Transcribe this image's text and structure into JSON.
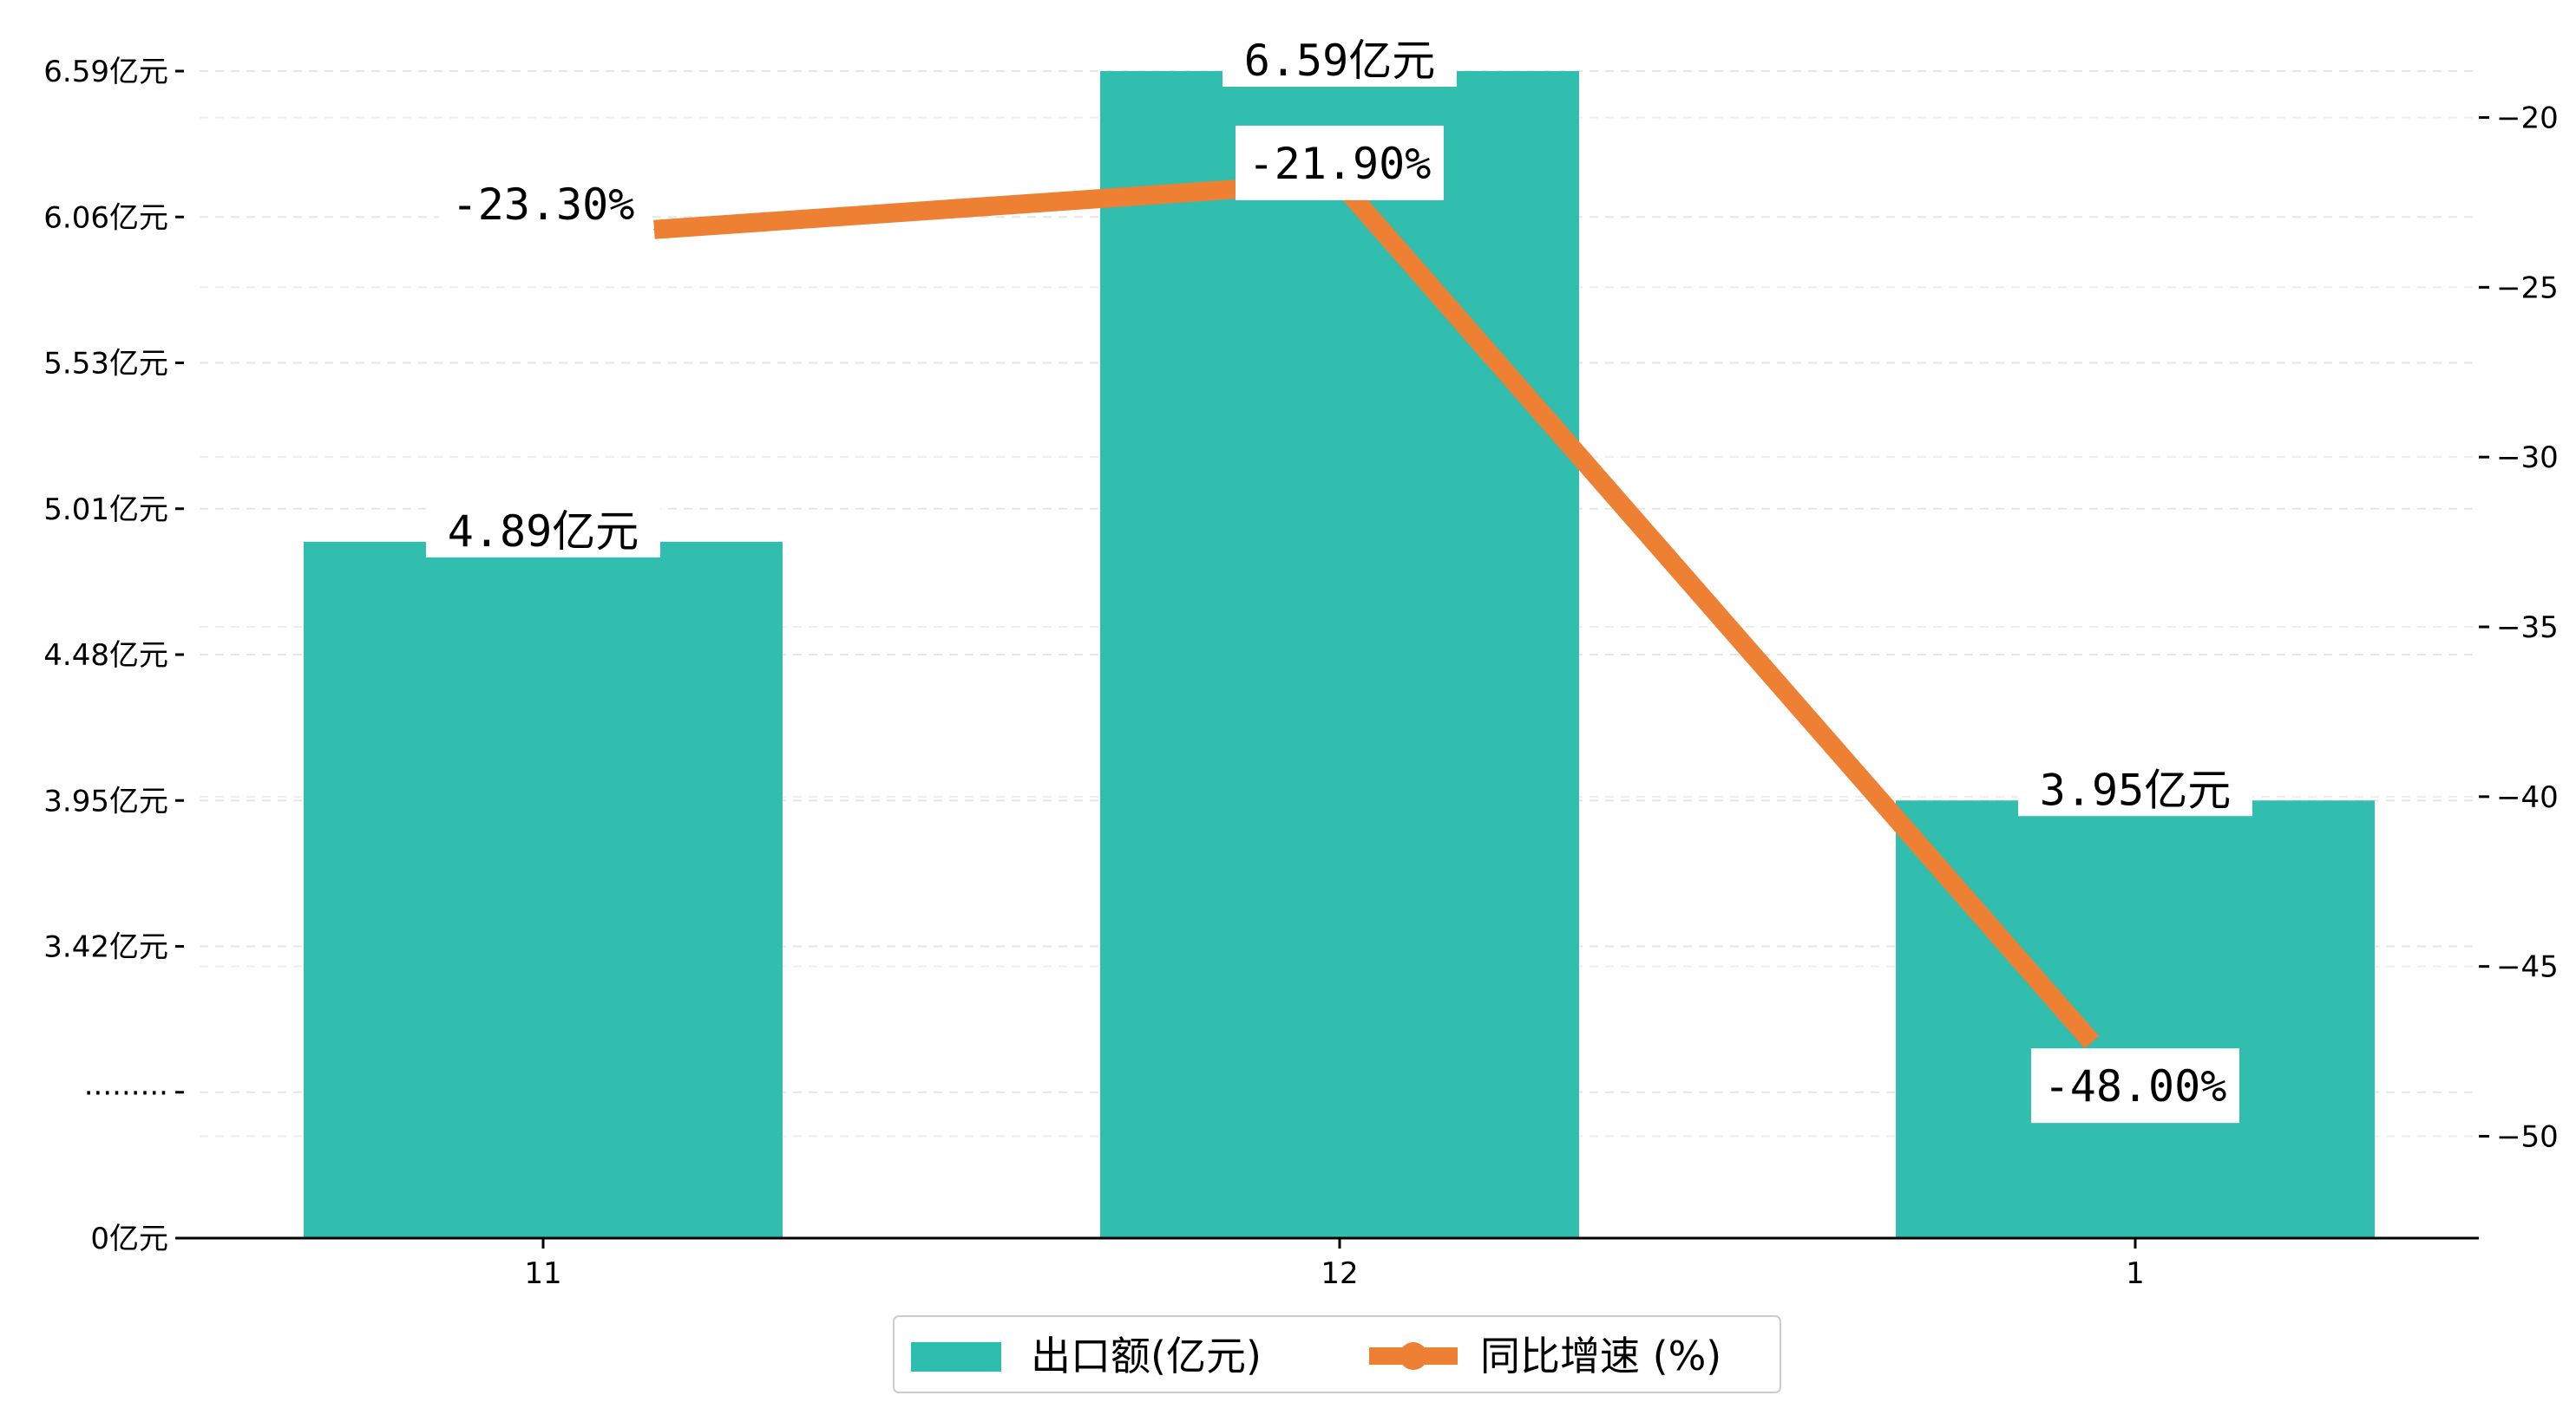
{
  "colors": {
    "bar": "#2dbdad",
    "line": "#ed8032",
    "axis": "#000000",
    "grid": "#e6e6e6",
    "label_box": "#ffffff"
  },
  "chart_data": {
    "type": "bar",
    "categories": [
      "11",
      "12",
      "1"
    ],
    "series": [
      {
        "name": "出口额(亿元)",
        "type": "bar",
        "axis": "left",
        "values": [
          4.89,
          6.59,
          3.95
        ],
        "labels": [
          "4.89亿元",
          "6.59亿元",
          "3.95亿元"
        ]
      },
      {
        "name": "同比增速 (%)",
        "type": "line",
        "axis": "right",
        "values": [
          -23.3,
          -21.9,
          -48.0
        ],
        "labels": [
          "-23.30%",
          "-21.90%",
          "-48.00%"
        ]
      }
    ],
    "left_axis": {
      "ticks": [
        0,
        2.37,
        3.42,
        3.95,
        4.48,
        5.01,
        5.53,
        6.06,
        6.59
      ],
      "tick_labels": [
        "0亿元",
        "·········",
        "3.42亿元",
        "3.95亿元",
        "4.48亿元",
        "5.01亿元",
        "5.53亿元",
        "6.06亿元",
        "6.59亿元"
      ],
      "axis_break": true
    },
    "right_axis": {
      "ylim": [
        -53,
        -17
      ],
      "ticks": [
        -50,
        -45,
        -40,
        -35,
        -30,
        -25,
        -20
      ],
      "tick_labels": [
        "−50",
        "−45",
        "−40",
        "−35",
        "−30",
        "−25",
        "−20"
      ]
    },
    "grid": true,
    "legend": {
      "position": "bottom-center",
      "entries": [
        "出口额(亿元)",
        "同比增速 (%)"
      ]
    }
  }
}
